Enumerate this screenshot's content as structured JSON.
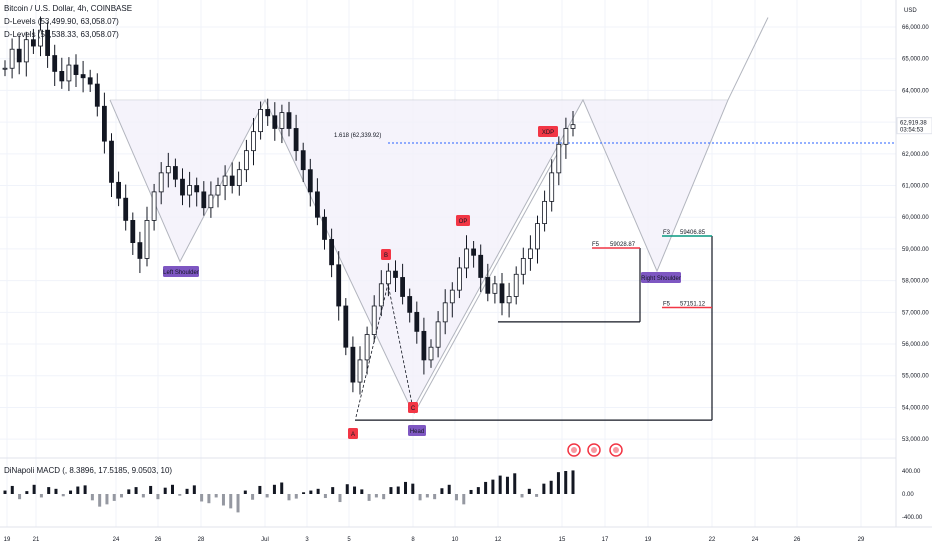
{
  "header": {
    "title": "Bitcoin / U.S. Dollar, 4h, COINBASE",
    "dlevels_1": "D-Levels (53,499.90, 63,058.07)",
    "dlevels_2": "D-Levels (53,538.33, 63,058.07)"
  },
  "currency": "USD",
  "current_price": "62,919.38",
  "countdown": "03:54:53",
  "macd": {
    "label": "DiNapoli MACD (, 8.3896, 17.5185, 9.0503, 10)",
    "ticks": [
      "400.00",
      "0.00",
      "-400.00"
    ]
  },
  "annotations": {
    "fib": "1.618 (62,339.92)",
    "A": "A",
    "B": "B",
    "C": "C",
    "OP": "OP",
    "XDP": "XDP",
    "left_shoulder": "Left Shoulder",
    "head": "Head",
    "right_shoulder": "Right Shoulder",
    "f5a": "F5",
    "f5a_val": "59028.87",
    "f3": "F3",
    "f3_val": "59406.85",
    "f5b": "F5",
    "f5b_val": "57151.12"
  },
  "colors": {
    "up": "#131722",
    "down": "#131722",
    "pattern": "#b2b5be",
    "label_red": "#f23645",
    "label_purple": "#7e57c2",
    "fib_blue": "#2962ff",
    "green": "#089981"
  },
  "chart_data": {
    "type": "line",
    "title": "Bitcoin / U.S. Dollar, 4h, COINBASE",
    "xlabel": "",
    "ylabel": "",
    "y_ticks": [
      66000,
      65000,
      64000,
      63000,
      62000,
      61000,
      60000,
      59000,
      58000,
      57000,
      56000,
      55000,
      54000,
      53000
    ],
    "ylim": [
      52500,
      66600
    ],
    "x_ticks": [
      "19",
      "21",
      "24",
      "26",
      "28",
      "Jul",
      "3",
      "5",
      "8",
      "10",
      "12",
      "15",
      "17",
      "19",
      "22",
      "24",
      "26",
      "29"
    ],
    "series": [
      {
        "values": [
          64700,
          65300,
          64900,
          65600,
          65400,
          65900,
          65100,
          64600,
          64300,
          64800,
          64500,
          64400,
          64200,
          63500,
          62400,
          61100,
          60600,
          59900,
          59200,
          58700,
          59900,
          60800,
          61400,
          61600,
          61200,
          60700,
          61000,
          60800,
          60300,
          60700,
          61000,
          61300,
          61000,
          61500,
          62100,
          62700,
          63400,
          63200,
          62800,
          63300,
          62800,
          62100,
          61500,
          60800,
          60000,
          59300,
          58500,
          57200,
          55900,
          54800,
          55500,
          56300,
          57200,
          57900,
          58300,
          58100,
          57500,
          57000,
          56400,
          55500,
          55900,
          56700,
          57300,
          57700,
          58400,
          59000,
          58800,
          58100,
          57600,
          57900,
          57300,
          57500,
          58200,
          58700,
          59000,
          59800,
          60500,
          61400,
          62300,
          62800,
          62919.38
        ]
      }
    ],
    "patterns": {
      "head_and_shoulders": [
        "Left Shoulder",
        "Head",
        "Right Shoulder"
      ],
      "abc": {
        "A": 53600,
        "B": 58400,
        "C": 53700,
        "OP": 59600,
        "XDP": 62500
      },
      "fib_1618": 62339.92,
      "F5_upper": 59028.87,
      "F3": 59406.85,
      "F5_lower": 57151.12
    },
    "macd": {
      "values": [
        60,
        140,
        -90,
        50,
        160,
        -60,
        120,
        90,
        -40,
        60,
        130,
        150,
        -110,
        -220,
        -180,
        -120,
        -60,
        80,
        120,
        -60,
        140,
        -90,
        110,
        160,
        -30,
        90,
        150,
        -130,
        -160,
        -60,
        -200,
        -250,
        -320,
        60,
        -100,
        140,
        -60,
        160,
        200,
        -110,
        -80,
        30,
        60,
        90,
        -70,
        120,
        -140,
        170,
        130,
        80,
        -120,
        -60,
        -90,
        120,
        130,
        210,
        180,
        -110,
        -60,
        -90,
        100,
        160,
        -110,
        -180,
        70,
        120,
        210,
        250,
        320,
        300,
        360,
        -60,
        90,
        -50,
        180,
        230,
        380,
        400,
        410
      ]
    }
  }
}
